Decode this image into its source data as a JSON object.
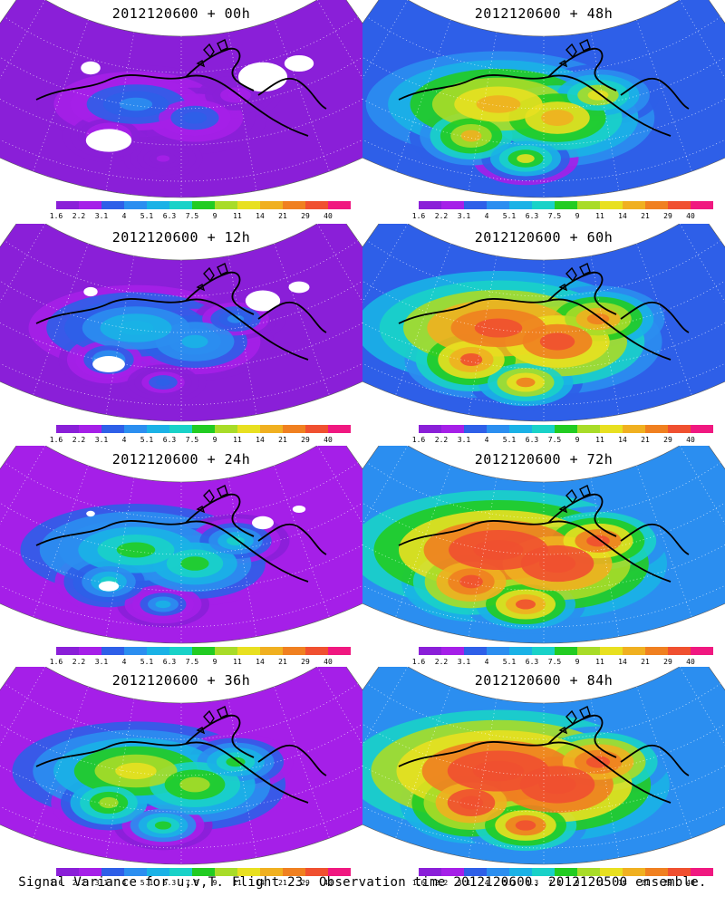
{
  "panels": [
    {
      "title": "2012120600 + 00h",
      "level": 0.05
    },
    {
      "title": "2012120600 + 48h",
      "level": 0.55
    },
    {
      "title": "2012120600 + 12h",
      "level": 0.18
    },
    {
      "title": "2012120600 + 60h",
      "level": 0.7
    },
    {
      "title": "2012120600 + 24h",
      "level": 0.3
    },
    {
      "title": "2012120600 + 72h",
      "level": 0.8
    },
    {
      "title": "2012120600 + 36h",
      "level": 0.42
    },
    {
      "title": "2012120600 + 84h",
      "level": 0.85
    }
  ],
  "colorbar": {
    "colors": [
      "#8a1fd8",
      "#a51fe8",
      "#2e5fe8",
      "#2b8ef0",
      "#1ab2e6",
      "#19d2c8",
      "#22cc22",
      "#a8dc28",
      "#e8e020",
      "#f0b020",
      "#f08020",
      "#f05030"
    ],
    "labels": [
      "1.6",
      "2.2",
      "3.1",
      "4",
      "5.1",
      "6.3",
      "7.5",
      "9",
      "11",
      "14",
      "21",
      "29",
      "40"
    ],
    "top_color": "#f01880"
  },
  "caption": "Signal Variance for u,v,T. Flight 23. Observation time 2012120600. 2012120500 ensemble."
}
